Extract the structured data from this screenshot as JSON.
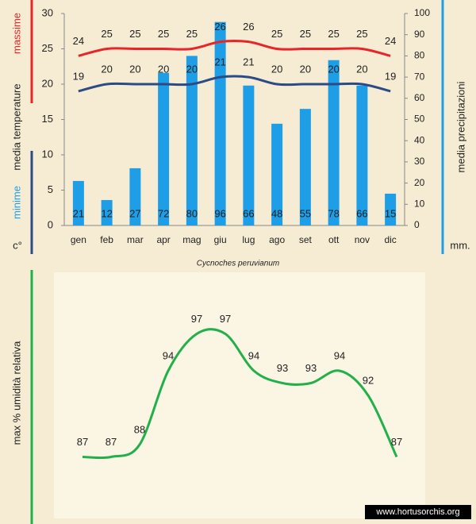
{
  "title": "Cycnoches peruvianum",
  "footer": "www.hortusorchis.org",
  "chart_data": [
    {
      "type": "combo",
      "y_label": "media temperature",
      "y_unit": "c°",
      "y2_unit": "mm.",
      "categories": [
        "gen",
        "feb",
        "mar",
        "apr",
        "mag",
        "giu",
        "lug",
        "ago",
        "set",
        "ott",
        "nov",
        "dic"
      ],
      "series": [
        {
          "name": "media precipitazioni",
          "kind": "bar",
          "axis": "y2",
          "color": "#1e9ee6",
          "values": [
            21,
            12,
            27,
            72,
            80,
            96,
            66,
            48,
            55,
            78,
            66,
            15
          ]
        },
        {
          "name": "massime",
          "kind": "line",
          "color": "#e8262a",
          "values": [
            24,
            25,
            25,
            25,
            25,
            26,
            26,
            25,
            25,
            25,
            25,
            24
          ]
        },
        {
          "name": "minime",
          "kind": "line",
          "color": "#2c4a86",
          "values": [
            19,
            20,
            20,
            20,
            20,
            21,
            21,
            20,
            20,
            20,
            20,
            19
          ]
        }
      ],
      "ylim": [
        0,
        30
      ],
      "yticks": [
        0,
        5,
        10,
        15,
        20,
        25,
        30
      ],
      "y2lim": [
        0,
        100
      ],
      "y2ticks": [
        0,
        10,
        20,
        30,
        40,
        50,
        60,
        70,
        80,
        90,
        100
      ]
    },
    {
      "type": "line",
      "y_label": "max % umidità relativa",
      "categories": [
        null,
        null,
        null,
        null,
        null,
        null,
        null,
        null,
        null,
        null,
        null,
        null
      ],
      "series": [
        {
          "color": "#22b04a",
          "values": [
            87,
            87,
            88,
            94,
            97,
            97,
            94,
            93,
            93,
            94,
            92,
            87
          ]
        }
      ],
      "ylim": [
        82,
        102
      ]
    }
  ]
}
